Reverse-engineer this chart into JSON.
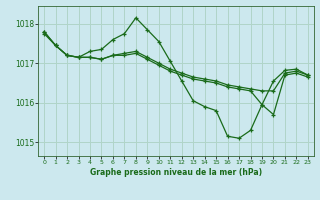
{
  "title": "Graphe pression niveau de la mer (hPa)",
  "bg_color": "#cce8ee",
  "grid_color": "#b0d4c8",
  "line_color": "#1a6b1a",
  "ylim": [
    1014.65,
    1018.45
  ],
  "yticks": [
    1015,
    1016,
    1017,
    1018
  ],
  "xlim": [
    -0.5,
    23.5
  ],
  "xticks": [
    0,
    1,
    2,
    3,
    4,
    5,
    6,
    7,
    8,
    9,
    10,
    11,
    12,
    13,
    14,
    15,
    16,
    17,
    18,
    19,
    20,
    21,
    22,
    23
  ],
  "series1": [
    1017.8,
    1017.45,
    1017.2,
    1017.15,
    1017.15,
    1017.1,
    1017.2,
    1017.25,
    1017.3,
    1017.15,
    1017.0,
    1016.85,
    1016.75,
    1016.65,
    1016.6,
    1016.55,
    1016.45,
    1016.4,
    1016.35,
    1016.3,
    1016.3,
    1016.75,
    1016.8,
    1016.7
  ],
  "series2": [
    1017.75,
    1017.45,
    1017.2,
    1017.15,
    1017.15,
    1017.1,
    1017.2,
    1017.2,
    1017.25,
    1017.1,
    1016.95,
    1016.8,
    1016.7,
    1016.6,
    1016.55,
    1016.5,
    1016.4,
    1016.35,
    1016.3,
    1015.95,
    1015.7,
    1016.7,
    1016.75,
    1016.65
  ],
  "series3": [
    1017.8,
    1017.45,
    1017.2,
    1017.15,
    1017.3,
    1017.35,
    1017.6,
    1017.75,
    1018.15,
    1017.85,
    1017.55,
    1017.05,
    1016.55,
    1016.05,
    1015.9,
    1015.8,
    1015.15,
    1015.1,
    1015.3,
    1015.95,
    1016.55,
    1016.82,
    1016.85,
    1016.7
  ]
}
